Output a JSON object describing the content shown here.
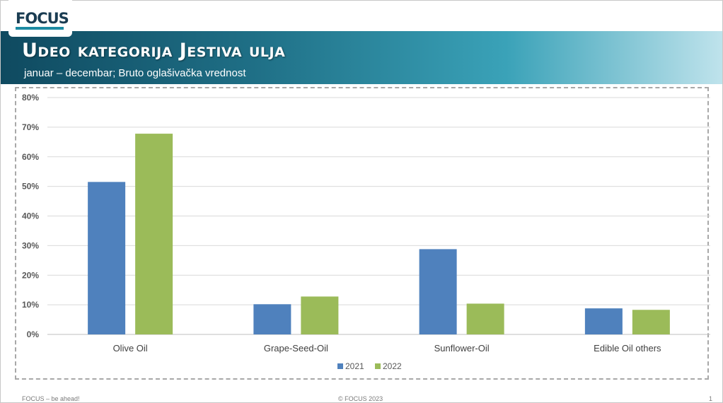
{
  "logo": {
    "text": "FOCUS"
  },
  "header": {
    "title": "Udeo kategorija Jestiva ulja",
    "subtitle": "januar – decembar; Bruto oglašivačka vrednost"
  },
  "colors": {
    "series_2021": "#4f81bd",
    "series_2022": "#9bbb59",
    "header_dark": "#0f4a60"
  },
  "chart_data": {
    "type": "bar",
    "categories": [
      "Olive Oil",
      "Grape-Seed-Oil",
      "Sunflower-Oil",
      "Edible Oil others"
    ],
    "series": [
      {
        "name": "2021",
        "values": [
          51.5,
          10.2,
          28.8,
          8.8
        ]
      },
      {
        "name": "2022",
        "values": [
          67.8,
          12.8,
          10.4,
          8.3
        ]
      }
    ],
    "ylim": [
      0,
      80
    ],
    "yticks": [
      "0%",
      "10%",
      "20%",
      "30%",
      "40%",
      "50%",
      "60%",
      "70%",
      "80%"
    ],
    "grid": true,
    "legend_position": "bottom-center"
  },
  "footer": {
    "left": "FOCUS – be ahead!",
    "center": "© FOCUS 2023",
    "right": "1"
  }
}
